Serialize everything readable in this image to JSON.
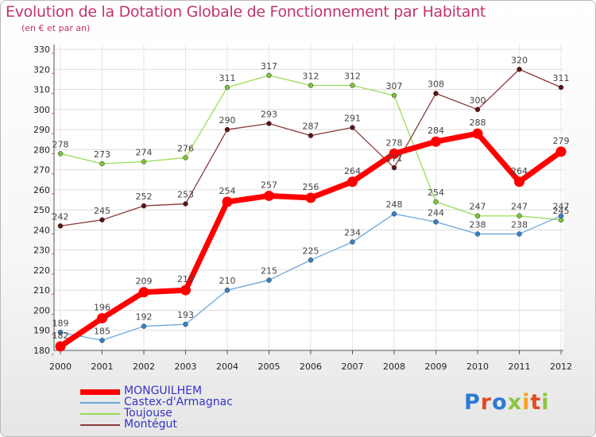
{
  "title": "Evolution de la Dotation Globale de Fonctionnement par Habitant",
  "subtitle": "(en € et par an)",
  "logo": {
    "text": "Proxiti",
    "colors": [
      "#2b7bd3",
      "#e14a1f",
      "#2b7bd3",
      "#8cc63f",
      "#f7a21b",
      "#e14a1f",
      "#8cc63f"
    ]
  },
  "chart_data": {
    "type": "line",
    "x": [
      "2000",
      "2001",
      "2002",
      "2003",
      "2004",
      "2005",
      "2006",
      "2007",
      "2008",
      "2009",
      "2010",
      "2011",
      "2012"
    ],
    "ylim": [
      180,
      330
    ],
    "yticks": [
      180,
      190,
      200,
      210,
      220,
      230,
      240,
      250,
      260,
      270,
      280,
      290,
      300,
      310,
      320,
      330
    ],
    "grid": true,
    "legend_position": "bottom-left",
    "series": [
      {
        "name": "Toujouse",
        "color": "#99dd55",
        "marker": "#7cc23a",
        "width": 1.3,
        "dot": 3,
        "values": [
          278,
          273,
          274,
          276,
          311,
          317,
          312,
          312,
          307,
          254,
          247,
          247,
          245
        ]
      },
      {
        "name": "Montégut",
        "color": "#8c3a3a",
        "marker": "#5a1515",
        "width": 1.3,
        "dot": 3,
        "values": [
          242,
          245,
          252,
          253,
          290,
          293,
          287,
          291,
          271,
          308,
          300,
          320,
          311
        ]
      },
      {
        "name": "Castex-d'Armagnac",
        "color": "#6aa7dd",
        "marker": "#3a7fc5",
        "width": 1.3,
        "dot": 3,
        "values": [
          189,
          185,
          192,
          193,
          210,
          215,
          225,
          234,
          248,
          244,
          238,
          238,
          247
        ]
      },
      {
        "name": "MONGUILHEM",
        "color": "#ff0000",
        "marker": "#ff0000",
        "width": 7,
        "dot": 6.5,
        "values": [
          182,
          196,
          209,
          210,
          254,
          257,
          256,
          264,
          278,
          284,
          288,
          264,
          279
        ]
      }
    ],
    "legend_order": [
      "MONGUILHEM",
      "Castex-d'Armagnac",
      "Toujouse",
      "Montégut"
    ]
  }
}
